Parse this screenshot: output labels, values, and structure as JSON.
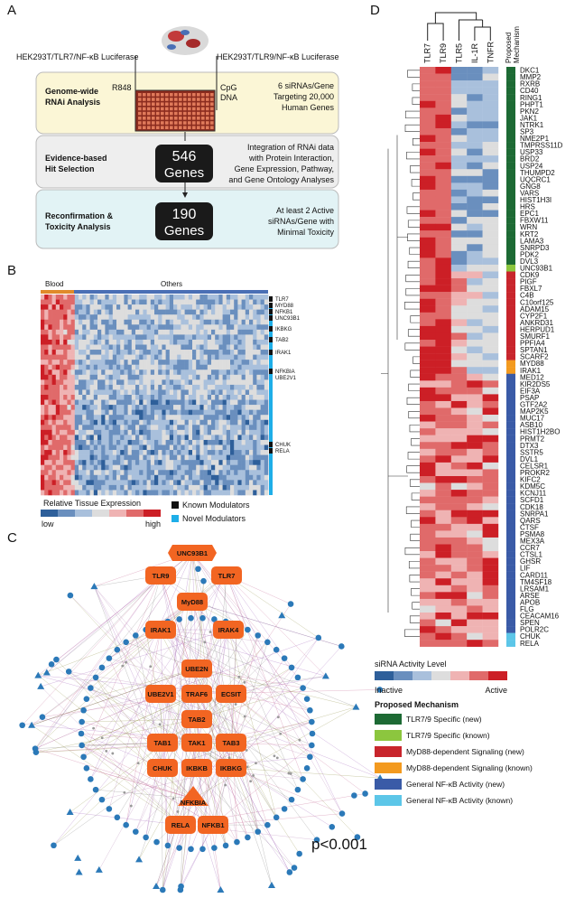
{
  "panel_labels": [
    "A",
    "B",
    "C",
    "D"
  ],
  "panel_a": {
    "left_cell_line": "HEK293T/TLR7/NF-κB Luciferase",
    "right_cell_line": "HEK293T/TLR9/NF-κB Luciferase",
    "stimulus_left": "R848",
    "stimulus_right": [
      "CpG",
      "DNA"
    ],
    "steps": [
      {
        "title": [
          "Genome-wide",
          "RNAi Analysis"
        ],
        "detail": [
          "6 siRNAs/Gene",
          "Targeting 20,000",
          "Human Genes"
        ]
      },
      {
        "title": [
          "Evidence-based",
          "Hit Selection"
        ],
        "count": [
          "546",
          "Genes"
        ],
        "detail": [
          "Integration of RNAi data",
          "with Protein Interaction,",
          "Gene Expression, Pathway,",
          "and Gene Ontology Analyses"
        ]
      },
      {
        "title": [
          "Reconfirmation &",
          "Toxicity Analysis"
        ],
        "count": [
          "190",
          "Genes"
        ],
        "detail": [
          "At least 2 Active",
          "siRNAs/Gene with",
          "Minimal Toxicity"
        ]
      }
    ]
  },
  "panel_b": {
    "group_labels": [
      "Blood",
      "Others"
    ],
    "genes": [
      "TLR7",
      "MYD88",
      "NFKB1",
      "UNC93B1",
      "IKBKG",
      "TAB2",
      "IRAK1",
      "NFKBIA",
      "UBE2V1",
      "CHUK",
      "RELA"
    ],
    "legend_title": "Relative Tissue Expression",
    "scale_labels": [
      "low",
      "high"
    ],
    "modulator_legend": [
      "Known Modulators",
      "Novel Modulators"
    ]
  },
  "panel_c": {
    "nodes": [
      "UNC93B1",
      "TLR9",
      "TLR7",
      "MyD88",
      "IRAK1",
      "IRAK4",
      "UBE2N",
      "UBE2V1",
      "TRAF6",
      "ECSIT",
      "TAB2",
      "TAB1",
      "TAK1",
      "TAB3",
      "CHUK",
      "IKBKB",
      "IKBKG",
      "NFKBIA",
      "RELA",
      "NFKB1"
    ],
    "p_value": "p<0.001"
  },
  "panel_d": {
    "columns": [
      "TLR7",
      "TLR9",
      "TLR5",
      "IL-1R",
      "TNFR"
    ],
    "mechanism_header": [
      "Proposed",
      "Mechanism"
    ],
    "genes": [
      "DKC1",
      "MMP2",
      "RXRB",
      "CD40",
      "RING1",
      "PHPT1",
      "PKN2",
      "JAK1",
      "NTRK1",
      "SP3",
      "NME2P1",
      "TMPRSS11D",
      "USP33",
      "BRD2",
      "USP24",
      "THUMPD2",
      "UQCRC1",
      "GNG8",
      "VARS",
      "HIST1H3I",
      "HRS",
      "EPC1",
      "FBXW11",
      "WRN",
      "KRT2",
      "LAMA3",
      "SNRPD3",
      "PDK2",
      "DVL3",
      "UNC93B1",
      "CDK9",
      "PIGF",
      "FBXL7",
      "C4B",
      "C10orf125",
      "ADAM15",
      "CYP2F1",
      "ANKRD31",
      "HERPUD1",
      "SMURF1",
      "PPFIA4",
      "SPTAN1",
      "SCARF2",
      "MYD88",
      "IRAK1",
      "MED12",
      "KIR2DS5",
      "EIF3A",
      "PSAP",
      "GTF2A2",
      "MAP2K5",
      "MUC17",
      "ASB10",
      "HIST1H2BO",
      "PRMT2",
      "DTX3",
      "SSTR5",
      "DVL1",
      "CELSR1",
      "PROKR2",
      "KIFC2",
      "KDM5C",
      "KCNJ11",
      "SCFD1",
      "CDK18",
      "SNRPA1",
      "QARS",
      "CTSF",
      "PSMA8",
      "MEX3A",
      "CCR7",
      "CTSL1",
      "GHSR",
      "LIF",
      "CARD11",
      "TM4SF18",
      "LRSAM1",
      "ARSE",
      "APOB",
      "FLG",
      "CEACAM16",
      "SPEN",
      "POLR2C",
      "CHUK",
      "RELA"
    ],
    "gene_mechanism": [
      0,
      0,
      0,
      0,
      0,
      0,
      0,
      0,
      0,
      0,
      0,
      0,
      0,
      0,
      0,
      0,
      0,
      0,
      0,
      0,
      0,
      0,
      0,
      0,
      0,
      0,
      0,
      0,
      0,
      1,
      2,
      2,
      2,
      2,
      2,
      2,
      2,
      2,
      2,
      2,
      2,
      2,
      2,
      3,
      3,
      4,
      4,
      4,
      4,
      4,
      4,
      4,
      4,
      4,
      4,
      4,
      4,
      4,
      4,
      4,
      4,
      4,
      4,
      4,
      4,
      4,
      4,
      4,
      4,
      4,
      4,
      4,
      4,
      4,
      4,
      4,
      4,
      4,
      4,
      4,
      4,
      4,
      4,
      5,
      5
    ],
    "activity_title": "siRNA Activity Level",
    "activity_labels": [
      "Inactive",
      "Active"
    ],
    "mechanism_title": "Proposed Mechanism",
    "mechanisms": [
      {
        "label": "TLR7/9 Specific (new)",
        "color": "#1d6a34"
      },
      {
        "label": "TLR7/9 Specific (known)",
        "color": "#8cc63e"
      },
      {
        "label": "MyD88-dependent Signaling (new)",
        "color": "#c8252c"
      },
      {
        "label": "MyD88-dependent Signaling (known)",
        "color": "#f39a1f"
      },
      {
        "label": "General NF-κB Activity (new)",
        "color": "#3a5ba7"
      },
      {
        "label": "General NF-κB Activity (known)",
        "color": "#5cc6e8"
      }
    ]
  }
}
